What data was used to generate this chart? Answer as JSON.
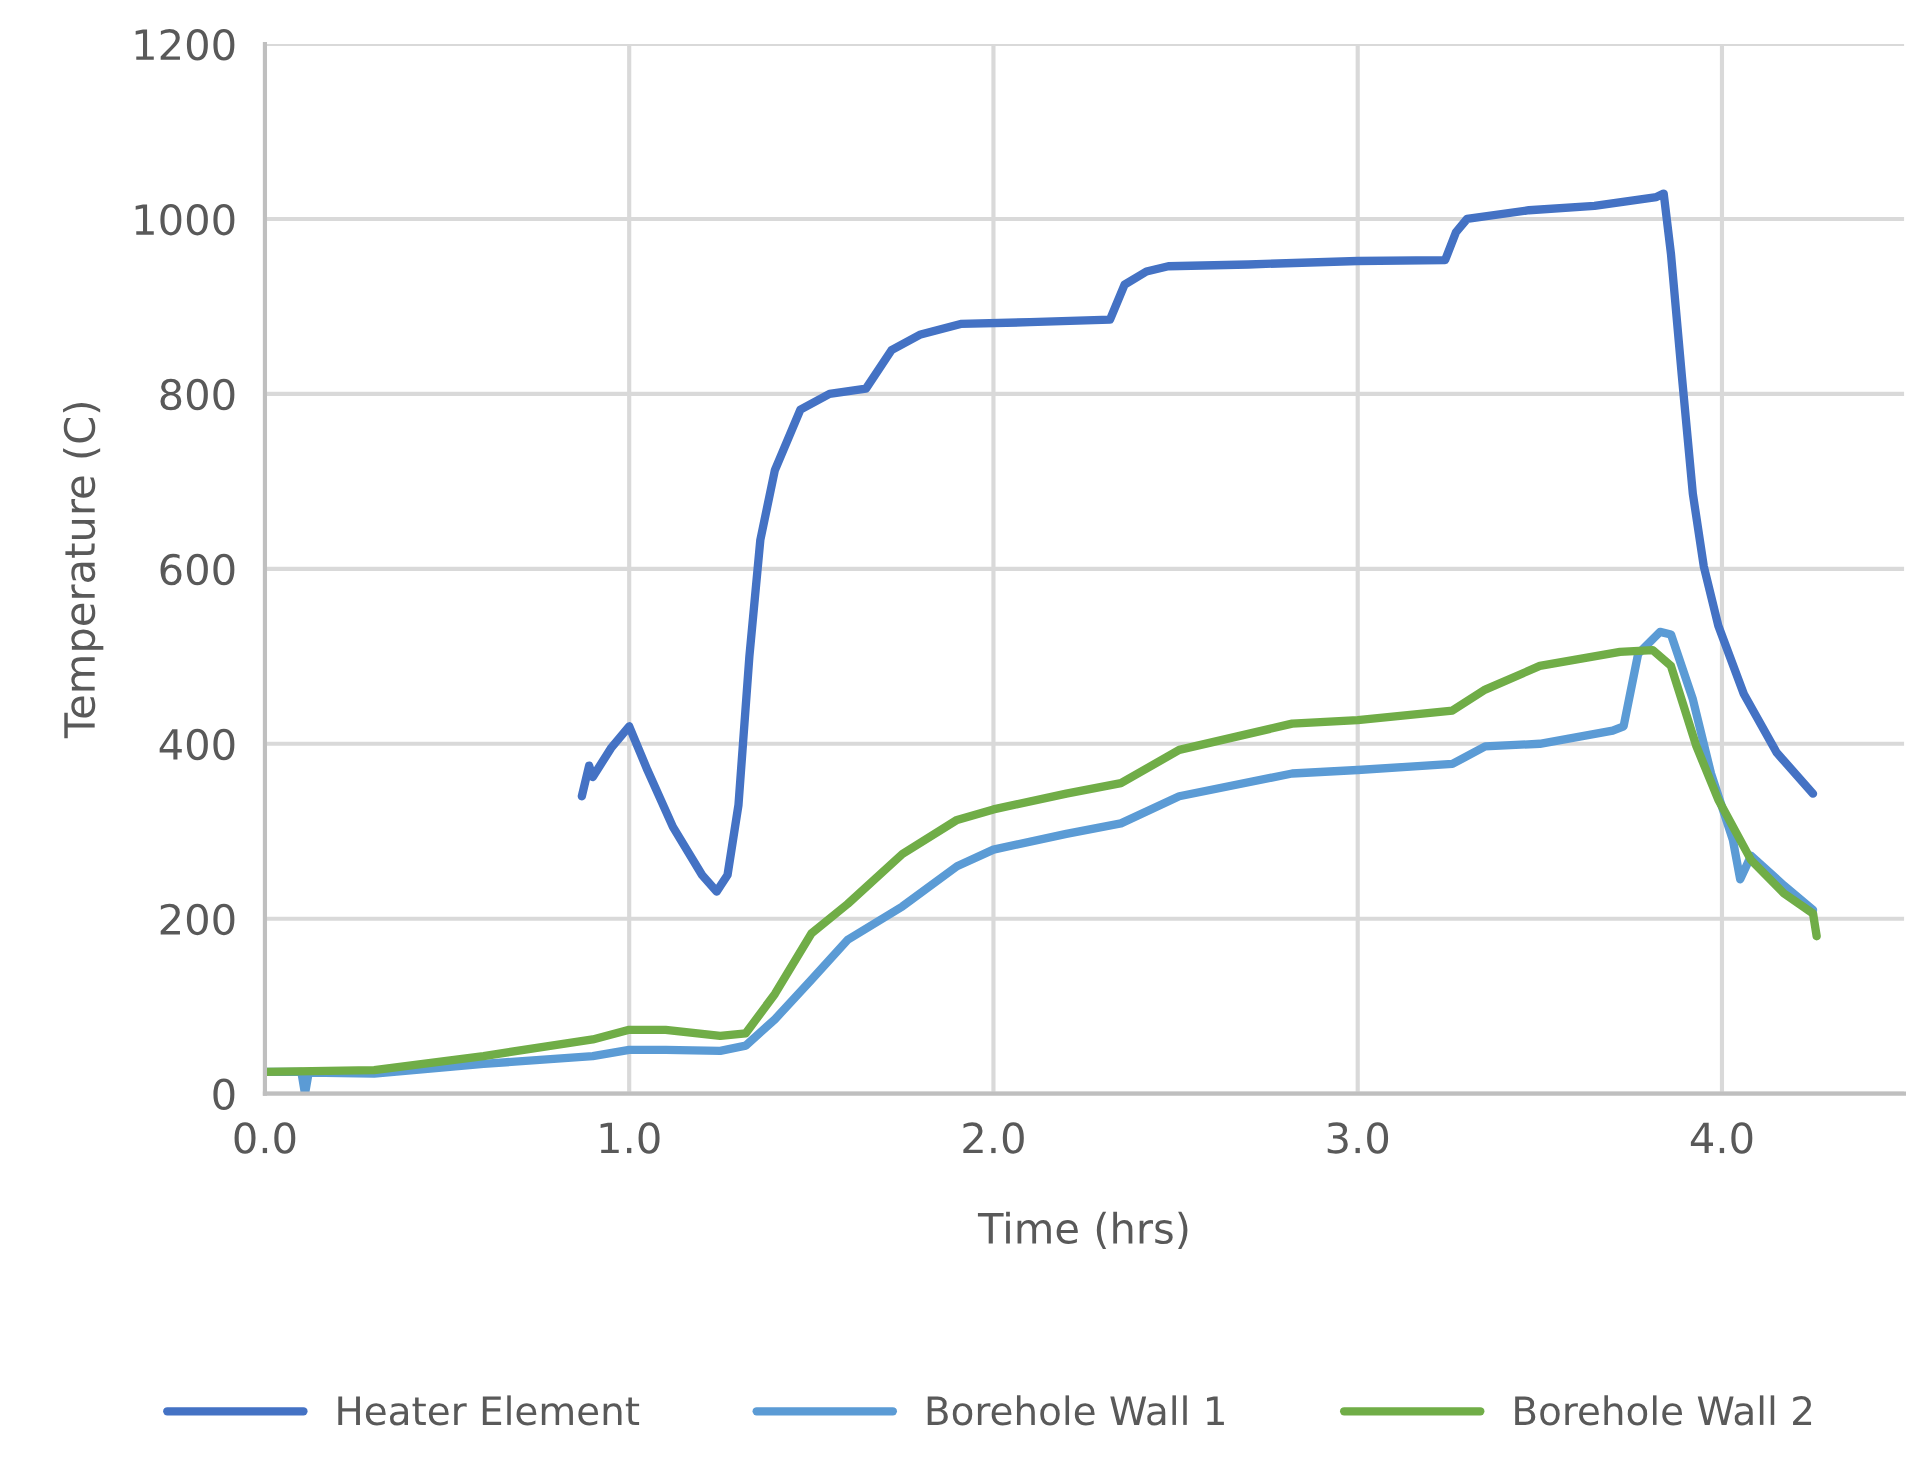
{
  "chart_data": {
    "type": "line",
    "xlabel": "Time (hrs)",
    "ylabel": "Temperature (C)",
    "xlim": [
      0,
      4.5
    ],
    "xticks": [
      {
        "value": 0,
        "label": "0.0"
      },
      {
        "value": 1,
        "label": "1.0"
      },
      {
        "value": 2,
        "label": "2.0"
      },
      {
        "value": 3,
        "label": "3.0"
      },
      {
        "value": 4,
        "label": "4.0"
      }
    ],
    "ylim": [
      0,
      1200
    ],
    "yticks": [
      0,
      200,
      400,
      600,
      800,
      1000,
      1200
    ],
    "grid": true,
    "legend": "bottom",
    "marker": "none",
    "line_style": "solid",
    "series": [
      {
        "name": "Heater Element",
        "color": "#4472c4",
        "x": [
          0.87,
          0.89,
          0.9,
          0.95,
          1.0,
          1.05,
          1.12,
          1.2,
          1.24,
          1.27,
          1.3,
          1.33,
          1.36,
          1.4,
          1.47,
          1.55,
          1.65,
          1.72,
          1.8,
          1.91,
          2.1,
          2.32,
          2.36,
          2.42,
          2.48,
          2.7,
          3.0,
          3.24,
          3.27,
          3.3,
          3.47,
          3.65,
          3.82,
          3.84,
          3.86,
          3.89,
          3.92,
          3.95,
          3.99,
          4.06,
          4.15,
          4.25
        ],
        "values": [
          340,
          375,
          362,
          395,
          420,
          370,
          305,
          250,
          231,
          250,
          330,
          500,
          633,
          713,
          782,
          800,
          806,
          850,
          868,
          880,
          882,
          885,
          925,
          940,
          946,
          948,
          952,
          953,
          985,
          1000,
          1010,
          1015,
          1025,
          1029,
          960,
          820,
          686,
          603,
          535,
          457,
          390,
          343
        ]
      },
      {
        "name": "Borehole Wall 1",
        "color": "#5b9bd5",
        "x": [
          0,
          0.1,
          0.11,
          0.12,
          0.3,
          0.6,
          0.9,
          1.0,
          1.1,
          1.25,
          1.32,
          1.4,
          1.5,
          1.6,
          1.75,
          1.9,
          2.0,
          2.2,
          2.35,
          2.51,
          2.82,
          3.0,
          3.26,
          3.35,
          3.5,
          3.7,
          3.73,
          3.77,
          3.83,
          3.86,
          3.92,
          3.97,
          4.03,
          4.05,
          4.08,
          4.17,
          4.25
        ],
        "values": [
          25,
          25,
          0,
          24,
          23,
          34,
          43,
          50,
          50,
          49,
          55,
          85,
          130,
          176,
          214,
          260,
          279,
          297,
          309,
          340,
          366,
          370,
          377,
          397,
          400,
          415,
          420,
          503,
          528,
          525,
          451,
          366,
          290,
          245,
          272,
          238,
          210
        ]
      },
      {
        "name": "Borehole Wall 2",
        "color": "#70ad47",
        "x": [
          0,
          0.3,
          0.6,
          0.9,
          1.0,
          1.1,
          1.25,
          1.32,
          1.4,
          1.5,
          1.6,
          1.75,
          1.9,
          2.0,
          2.2,
          2.35,
          2.51,
          2.82,
          3.0,
          3.26,
          3.35,
          3.5,
          3.72,
          3.81,
          3.86,
          3.93,
          3.99,
          4.08,
          4.17,
          4.25,
          4.26
        ],
        "values": [
          25,
          27,
          43,
          62,
          73,
          73,
          66,
          69,
          114,
          183,
          217,
          274,
          313,
          325,
          343,
          355,
          393,
          423,
          427,
          438,
          462,
          489,
          505,
          507,
          489,
          397,
          336,
          267,
          229,
          206,
          180
        ]
      }
    ]
  }
}
